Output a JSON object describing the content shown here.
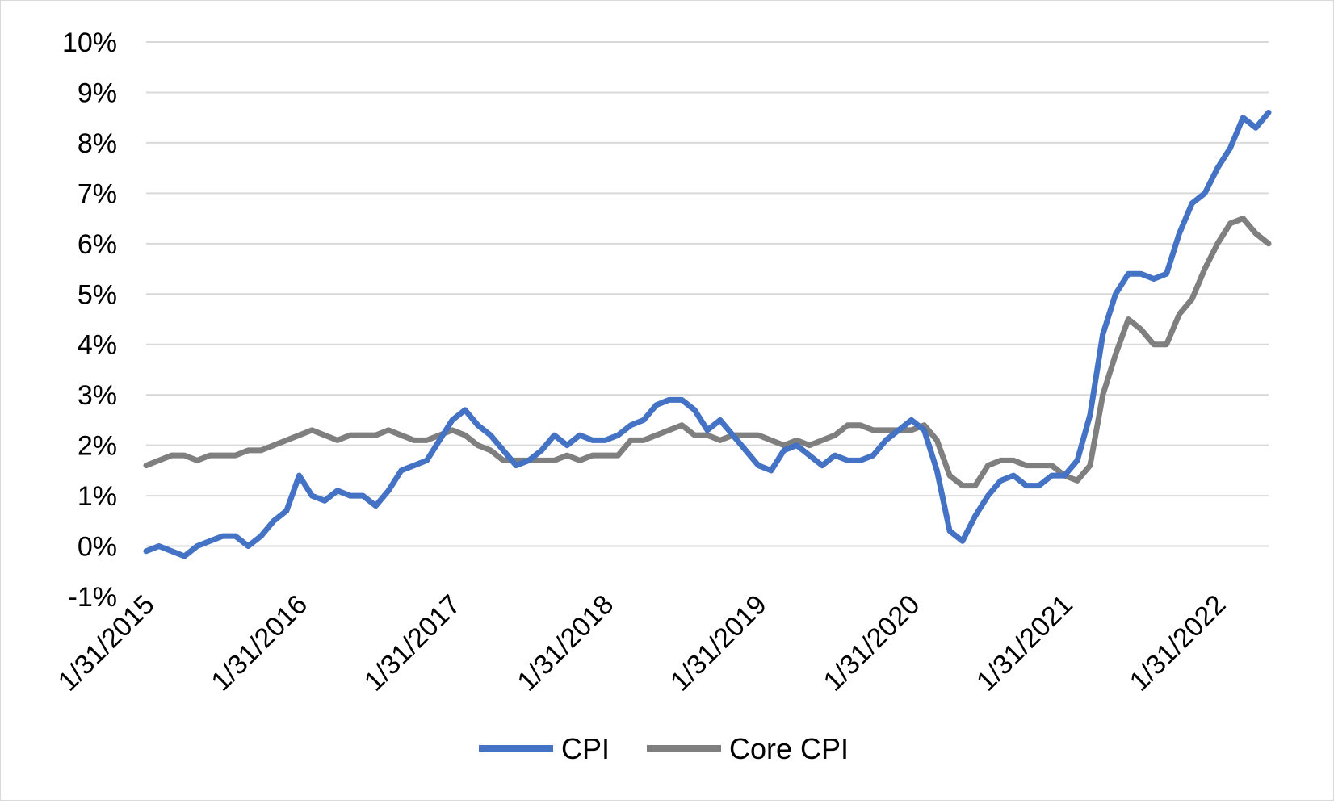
{
  "chart_data": {
    "type": "line",
    "title": "",
    "xlabel": "",
    "ylabel": "",
    "ylim": [
      -1,
      10
    ],
    "y_tick_step": 1,
    "y_tick_format": "percent",
    "grid": "horizontal",
    "legend_position": "bottom",
    "x_tick_labels": [
      "1/31/2015",
      "1/31/2016",
      "1/31/2017",
      "1/31/2018",
      "1/31/2019",
      "1/31/2020",
      "1/31/2021",
      "1/31/2022"
    ],
    "x_start": "2015-01",
    "x_end": "2022-05",
    "series": [
      {
        "name": "CPI",
        "color": "#4472C4",
        "values": [
          -0.1,
          0.0,
          -0.1,
          -0.2,
          0.0,
          0.1,
          0.2,
          0.2,
          0.0,
          0.2,
          0.5,
          0.7,
          1.4,
          1.0,
          0.9,
          1.1,
          1.0,
          1.0,
          0.8,
          1.1,
          1.5,
          1.6,
          1.7,
          2.1,
          2.5,
          2.7,
          2.4,
          2.2,
          1.9,
          1.6,
          1.7,
          1.9,
          2.2,
          2.0,
          2.2,
          2.1,
          2.1,
          2.2,
          2.4,
          2.5,
          2.8,
          2.9,
          2.9,
          2.7,
          2.3,
          2.5,
          2.2,
          1.9,
          1.6,
          1.5,
          1.9,
          2.0,
          1.8,
          1.6,
          1.8,
          1.7,
          1.7,
          1.8,
          2.1,
          2.3,
          2.5,
          2.3,
          1.5,
          0.3,
          0.1,
          0.6,
          1.0,
          1.3,
          1.4,
          1.2,
          1.2,
          1.4,
          1.4,
          1.7,
          2.6,
          4.2,
          5.0,
          5.4,
          5.4,
          5.3,
          5.4,
          6.2,
          6.8,
          7.0,
          7.5,
          7.9,
          8.5,
          8.3,
          8.6
        ]
      },
      {
        "name": "Core CPI",
        "color": "#7F7F7F",
        "values": [
          1.6,
          1.7,
          1.8,
          1.8,
          1.7,
          1.8,
          1.8,
          1.8,
          1.9,
          1.9,
          2.0,
          2.1,
          2.2,
          2.3,
          2.2,
          2.1,
          2.2,
          2.2,
          2.2,
          2.3,
          2.2,
          2.1,
          2.1,
          2.2,
          2.3,
          2.2,
          2.0,
          1.9,
          1.7,
          1.7,
          1.7,
          1.7,
          1.7,
          1.8,
          1.7,
          1.8,
          1.8,
          1.8,
          2.1,
          2.1,
          2.2,
          2.3,
          2.4,
          2.2,
          2.2,
          2.1,
          2.2,
          2.2,
          2.2,
          2.1,
          2.0,
          2.1,
          2.0,
          2.1,
          2.2,
          2.4,
          2.4,
          2.3,
          2.3,
          2.3,
          2.3,
          2.4,
          2.1,
          1.4,
          1.2,
          1.2,
          1.6,
          1.7,
          1.7,
          1.6,
          1.6,
          1.6,
          1.4,
          1.3,
          1.6,
          3.0,
          3.8,
          4.5,
          4.3,
          4.0,
          4.0,
          4.6,
          4.9,
          5.5,
          6.0,
          6.4,
          6.5,
          6.2,
          6.0
        ]
      }
    ]
  }
}
